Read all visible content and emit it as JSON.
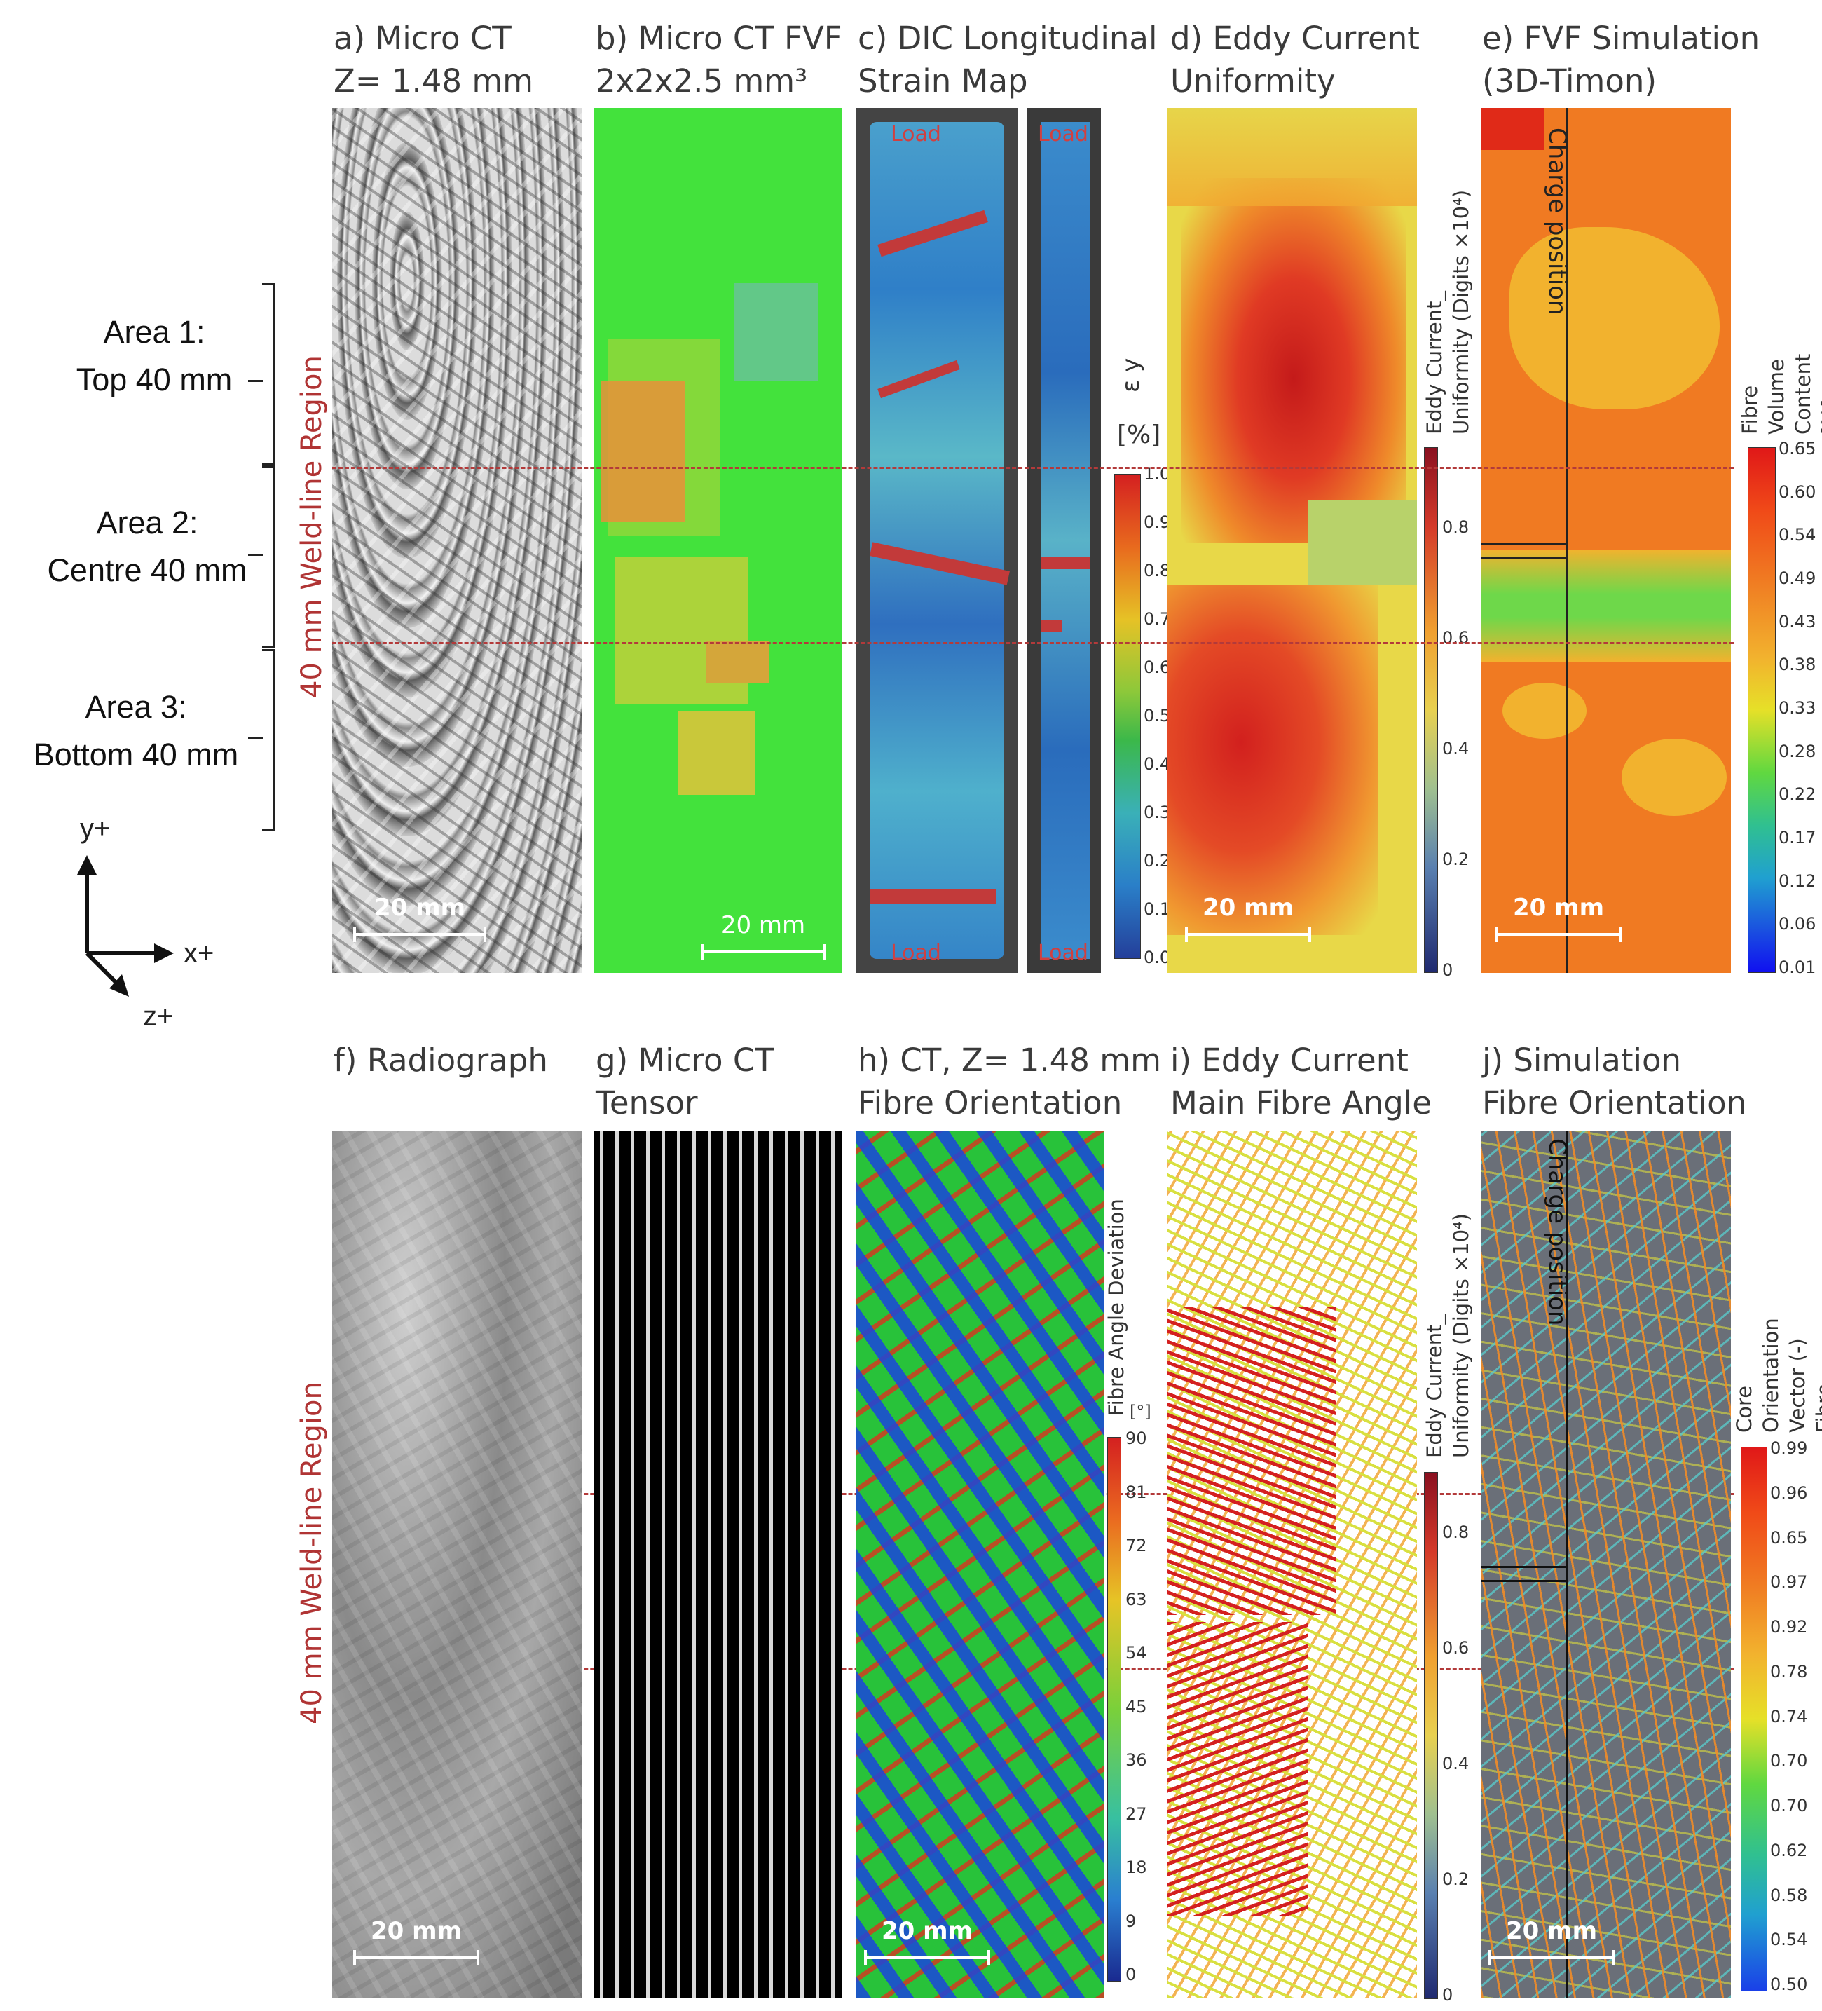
{
  "panels_top": [
    {
      "id": "a",
      "title": "a) Micro CT\nZ= 1.48 mm",
      "scale": "20 mm"
    },
    {
      "id": "b",
      "title": "b) Micro CT FVF\n2x2x2.5 mm³",
      "scale": "20 mm"
    },
    {
      "id": "c",
      "title": "c) DIC Longitudinal\nStrain Map",
      "load_top": "Load",
      "load_bottom": "Load"
    },
    {
      "id": "d",
      "title": "d) Eddy Current\nUniformity",
      "scale": "20 mm"
    },
    {
      "id": "e",
      "title": "e) FVF Simulation\n(3D-Timon)",
      "scale": "20 mm",
      "charge": "Charge position"
    }
  ],
  "panels_bottom": [
    {
      "id": "f",
      "title": "f) Radiograph",
      "scale": "20 mm"
    },
    {
      "id": "g",
      "title": "g) Micro CT\nTensor"
    },
    {
      "id": "h",
      "title": "h) CT, Z= 1.48 mm\nFibre Orientation",
      "scale": "20 mm"
    },
    {
      "id": "i",
      "title": "i) Eddy Current\nMain Fibre Angle"
    },
    {
      "id": "j",
      "title": "j) Simulation\nFibre Orientation",
      "scale": "20 mm",
      "charge": "Charge position"
    }
  ],
  "areas": [
    {
      "label": "Area 1:\nTop 40 mm"
    },
    {
      "label": "Area 2:\nCentre 40 mm"
    },
    {
      "label": "Area 3:\nBottom 40 mm"
    }
  ],
  "weld_label": "40 mm Weld-line Region",
  "axes": {
    "y": "y+",
    "x": "x+",
    "z": "z+"
  },
  "colorbars": {
    "strain": {
      "title": "ε y",
      "unit": "[%]",
      "ticks": [
        "1.0",
        "0.9",
        "0.8",
        "0.7",
        "0.6",
        "0.5",
        "0.4",
        "0.3",
        "0.2",
        "0.1",
        "0.0"
      ]
    },
    "eddy_top": {
      "title": "Eddy Current_\nUniformity (Digits ×10⁴)",
      "ticks": [
        "0.8",
        "0.6",
        "0.4",
        "0.2",
        "0"
      ]
    },
    "fvf": {
      "title": "Fibre Volume\nContent  [%]",
      "ticks": [
        "0.65",
        "0.60",
        "0.54",
        "0.49",
        "0.43",
        "0.38",
        "0.33",
        "0.28",
        "0.22",
        "0.17",
        "0.12",
        "0.06",
        "0.01"
      ]
    },
    "angle": {
      "title": "Fibre Angle Deviation",
      "unit": "[°]",
      "ticks": [
        "90",
        "81",
        "72",
        "63",
        "54",
        "45",
        "36",
        "27",
        "18",
        "9",
        "0"
      ]
    },
    "eddy_bottom": {
      "title": "Eddy Current_\nUniformity (Digits ×10⁴)",
      "ticks": [
        "0.8",
        "0.6",
        "0.4",
        "0.2",
        "0"
      ]
    },
    "orient": {
      "title": "Core Orientation\nVector (-) Fibre",
      "ticks": [
        "0.99",
        "0.96",
        "0.65",
        "0.97",
        "0.92",
        "0.78",
        "0.74",
        "0.70",
        "0.70",
        "0.62",
        "0.58",
        "0.54",
        "0.50"
      ]
    }
  },
  "colors": {
    "weld_line": "#b33a3a",
    "fvf_green": "#3ee03a",
    "strain_blue": "#2f7fc8",
    "eddy_red": "#e02a20",
    "sim_orange": "#f07a22",
    "sim_grey": "#6a6f78"
  }
}
